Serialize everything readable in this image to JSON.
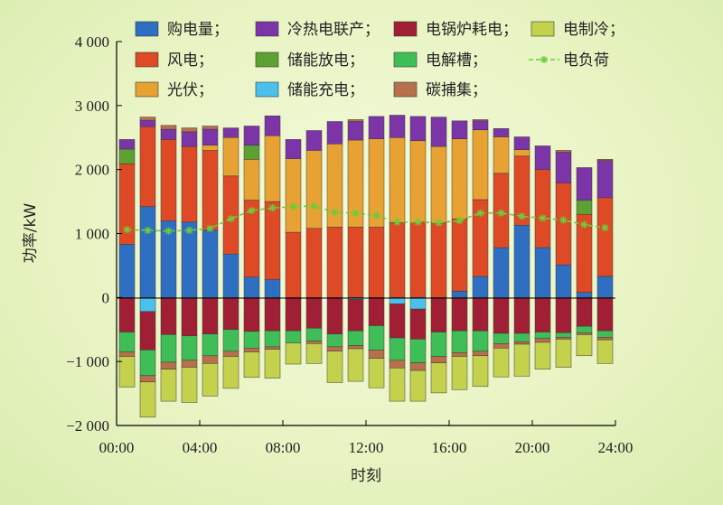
{
  "chart_data": {
    "type": "bar",
    "stacked": true,
    "xlabel": "时刻",
    "ylabel": "功率/kW",
    "x_tick_labels": [
      "00:00",
      "04:00",
      "08:00",
      "12:00",
      "16:00",
      "20:00",
      "24:00"
    ],
    "y_tick_labels": [
      "−2 000",
      "−1 000",
      "0",
      "1 000",
      "2 000",
      "3 000",
      "4 000"
    ],
    "xlim": [
      0,
      24
    ],
    "ylim": [
      -2000,
      4000
    ],
    "grid": false,
    "legend_position": "top",
    "hours": [
      1,
      2,
      3,
      4,
      5,
      6,
      7,
      8,
      9,
      10,
      11,
      12,
      13,
      14,
      15,
      16,
      17,
      18,
      19,
      20,
      21,
      22,
      23,
      24
    ],
    "series": [
      {
        "name": "购电量；",
        "color": "#2e6fc2",
        "stack": "positive",
        "values": [
          830,
          1420,
          1200,
          1180,
          1050,
          680,
          320,
          280,
          0,
          0,
          0,
          0,
          0,
          0,
          0,
          0,
          100,
          330,
          780,
          1130,
          780,
          510,
          80,
          330
        ]
      },
      {
        "name": "风电；",
        "color": "#dd4a25",
        "stack": "positive",
        "values": [
          1260,
          1250,
          1270,
          1180,
          1250,
          1220,
          1200,
          1220,
          1020,
          1080,
          1100,
          1100,
          1100,
          1170,
          1180,
          1170,
          1130,
          1200,
          1160,
          1080,
          1220,
          1280,
          1220,
          1230
        ]
      },
      {
        "name": "光伏；",
        "color": "#e7a233",
        "stack": "positive",
        "values": [
          0,
          0,
          0,
          0,
          80,
          600,
          640,
          1030,
          1150,
          1220,
          1300,
          1360,
          1380,
          1330,
          1270,
          1190,
          1250,
          1090,
          570,
          100,
          0,
          0,
          0,
          0
        ]
      },
      {
        "name": "储能放电；",
        "color": "#5da134",
        "stack": "positive",
        "values": [
          230,
          0,
          0,
          0,
          0,
          0,
          220,
          0,
          0,
          0,
          0,
          0,
          0,
          0,
          0,
          0,
          0,
          0,
          0,
          0,
          0,
          0,
          220,
          0
        ]
      },
      {
        "name": "冷热电联产；",
        "color": "#7b35a6",
        "stack": "positive",
        "values": [
          150,
          100,
          160,
          230,
          250,
          150,
          300,
          310,
          300,
          310,
          350,
          290,
          350,
          350,
          380,
          460,
          280,
          140,
          130,
          200,
          370,
          480,
          510,
          580
        ]
      },
      {
        "name": "碳捕集；",
        "color": "#b7704b",
        "stack": "positive",
        "values": [
          0,
          50,
          60,
          60,
          50,
          0,
          0,
          0,
          0,
          0,
          0,
          30,
          0,
          0,
          0,
          0,
          0,
          20,
          0,
          0,
          0,
          30,
          0,
          20
        ]
      },
      {
        "name": "储能充电；",
        "color": "#4cc0ec",
        "stack": "negative",
        "values": [
          0,
          -220,
          0,
          0,
          0,
          0,
          0,
          0,
          0,
          0,
          0,
          -30,
          0,
          -100,
          -180,
          0,
          0,
          0,
          0,
          0,
          0,
          0,
          0,
          0
        ]
      },
      {
        "name": "电锅炉耗电；",
        "color": "#a01f34",
        "stack": "negative",
        "values": [
          -540,
          -600,
          -580,
          -600,
          -570,
          -500,
          -530,
          -520,
          -520,
          -480,
          -570,
          -490,
          -440,
          -530,
          -470,
          -540,
          -520,
          -520,
          -560,
          -560,
          -540,
          -550,
          -450,
          -520
        ]
      },
      {
        "name": "电解槽；",
        "color": "#3fbe58",
        "stack": "negative",
        "values": [
          -310,
          -400,
          -430,
          -380,
          -340,
          -340,
          -260,
          -250,
          -190,
          -200,
          -200,
          -230,
          -380,
          -350,
          -370,
          -380,
          -340,
          -320,
          -160,
          -130,
          -100,
          -70,
          -100,
          -100
        ]
      },
      {
        "name": "碳捕集；",
        "color": "#b7704b",
        "stack": "negative",
        "values": [
          -70,
          -100,
          -110,
          -110,
          -120,
          -80,
          -60,
          -40,
          0,
          -40,
          -70,
          -50,
          -130,
          -120,
          -120,
          -100,
          -60,
          -70,
          -70,
          -40,
          -60,
          -30,
          -30,
          -40
        ]
      },
      {
        "name": "电制冷；",
        "color": "#c3d14c",
        "stack": "negative",
        "values": [
          -480,
          -550,
          -500,
          -550,
          -510,
          -500,
          -400,
          -450,
          -330,
          -310,
          -490,
          -510,
          -460,
          -520,
          -480,
          -470,
          -520,
          -480,
          -450,
          -500,
          -420,
          -440,
          -330,
          -370
        ]
      }
    ],
    "line_series": {
      "name": "电负荷",
      "color": "#6ccc3c",
      "values": [
        1060,
        1050,
        1040,
        1050,
        1080,
        1230,
        1360,
        1400,
        1420,
        1430,
        1330,
        1320,
        1280,
        1180,
        1180,
        1170,
        1200,
        1320,
        1320,
        1270,
        1240,
        1210,
        1140,
        1090
      ]
    },
    "legend": [
      {
        "label": "购电量；",
        "color": "#2e6fc2",
        "kind": "box"
      },
      {
        "label": "冷热电联产；",
        "color": "#7b35a6",
        "kind": "box"
      },
      {
        "label": "电锅炉耗电；",
        "color": "#a01f34",
        "kind": "box"
      },
      {
        "label": "电制冷；",
        "color": "#c3d14c",
        "kind": "box"
      },
      {
        "label": "风电；",
        "color": "#dd4a25",
        "kind": "box"
      },
      {
        "label": "储能放电；",
        "color": "#5da134",
        "kind": "box"
      },
      {
        "label": "电解槽；",
        "color": "#3fbe58",
        "kind": "box"
      },
      {
        "label": "电负荷",
        "color": "#6ccc3c",
        "kind": "line"
      },
      {
        "label": "光伏；",
        "color": "#e7a233",
        "kind": "box"
      },
      {
        "label": "储能充电；",
        "color": "#4cc0ec",
        "kind": "box"
      },
      {
        "label": "碳捕集；",
        "color": "#b7704b",
        "kind": "box"
      }
    ]
  }
}
